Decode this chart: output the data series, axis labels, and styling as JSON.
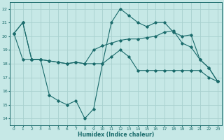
{
  "xlabel": "Humidex (Indice chaleur)",
  "ylabel": "",
  "background_color": "#c6e8e6",
  "grid_color": "#a8d0ce",
  "line_color": "#1a6b6b",
  "xlim": [
    -0.5,
    23.5
  ],
  "ylim": [
    13.5,
    22.5
  ],
  "xticks": [
    0,
    1,
    2,
    3,
    4,
    5,
    6,
    7,
    8,
    9,
    10,
    11,
    12,
    13,
    14,
    15,
    16,
    17,
    18,
    19,
    20,
    21,
    22,
    23
  ],
  "yticks": [
    14,
    15,
    16,
    17,
    18,
    19,
    20,
    21,
    22
  ],
  "series": [
    [
      20.2,
      21.0,
      18.3,
      18.3,
      15.7,
      15.3,
      15.0,
      15.3,
      14.0,
      14.7,
      18.0,
      21.0,
      22.0,
      21.5,
      21.0,
      20.7,
      21.0,
      21.0,
      20.3,
      20.0,
      20.1,
      18.3,
      17.7,
      16.7
    ],
    [
      20.2,
      21.0,
      18.3,
      18.3,
      18.2,
      18.1,
      18.0,
      18.1,
      18.0,
      19.0,
      19.3,
      19.5,
      19.7,
      19.8,
      19.8,
      19.9,
      20.0,
      20.3,
      20.4,
      19.5,
      19.2,
      18.3,
      17.7,
      16.7
    ],
    [
      20.2,
      18.3,
      18.3,
      18.3,
      18.2,
      18.1,
      18.0,
      18.1,
      18.0,
      18.0,
      18.0,
      18.5,
      19.0,
      18.5,
      17.5,
      17.5,
      17.5,
      17.5,
      17.5,
      17.5,
      17.5,
      17.5,
      17.0,
      16.7
    ]
  ]
}
